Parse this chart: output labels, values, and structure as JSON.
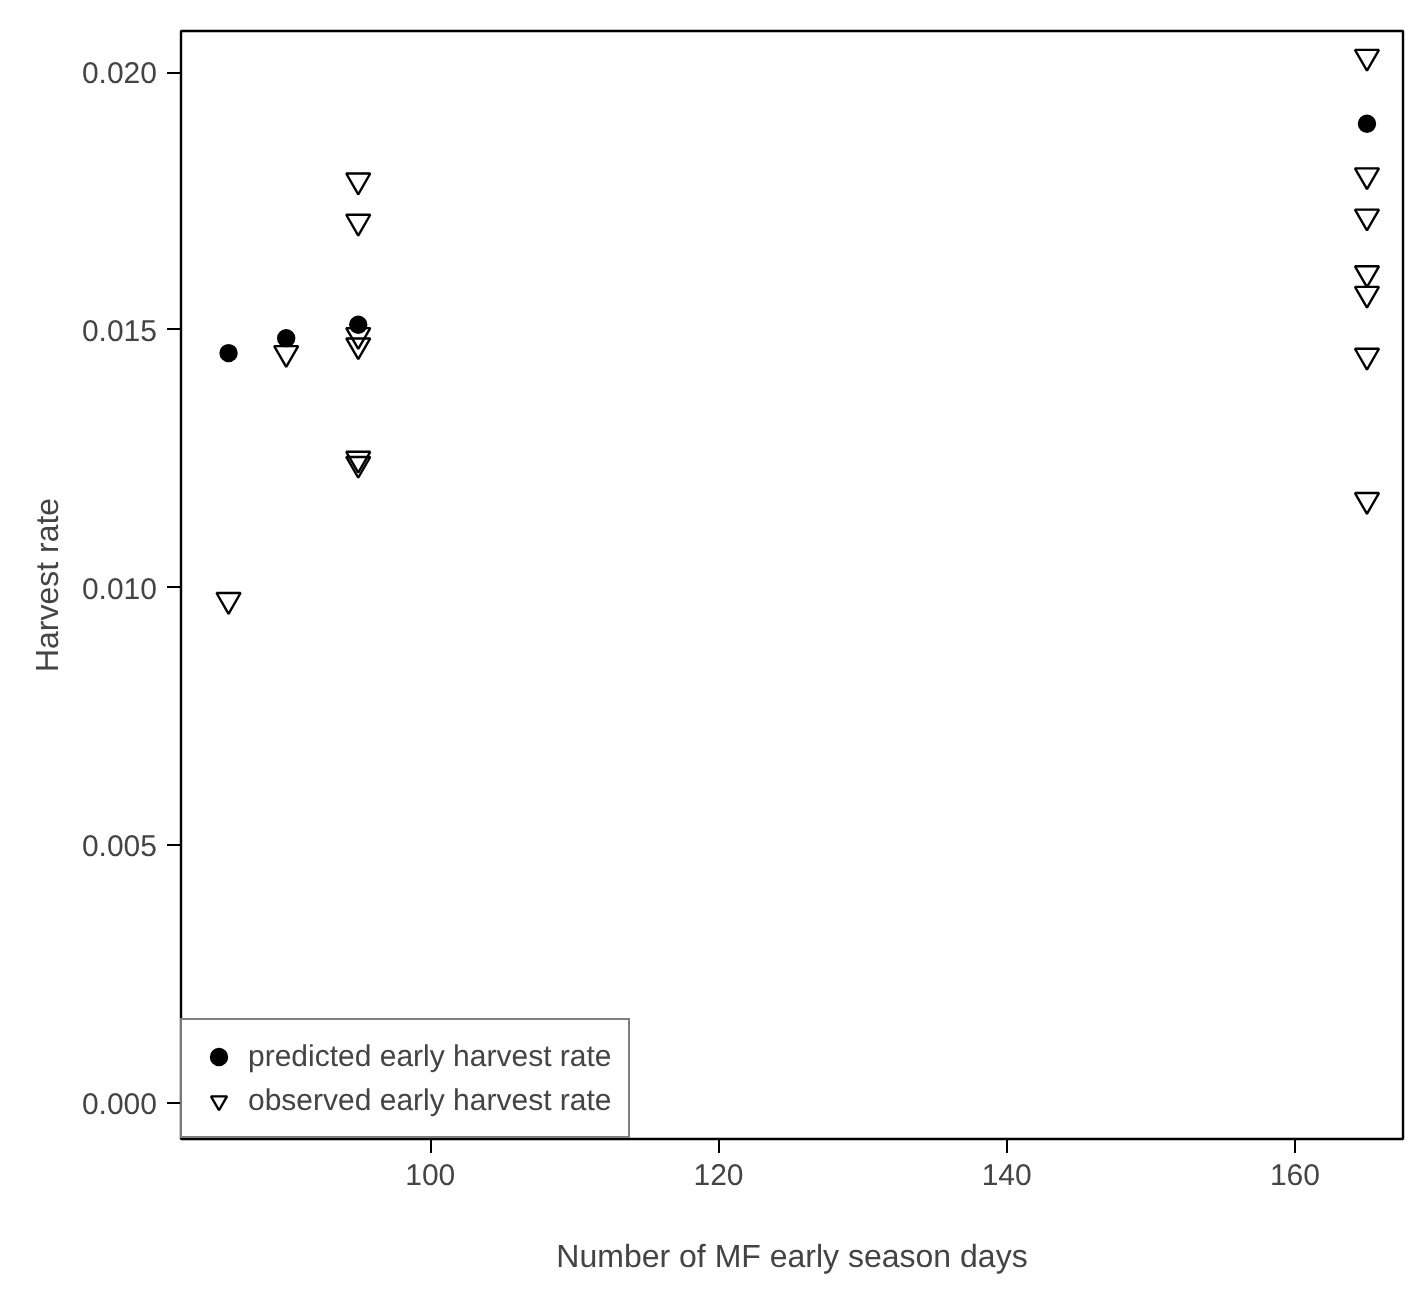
{
  "chart_data": {
    "type": "scatter",
    "xlabel": "Number of MF early season days",
    "ylabel": "Harvest rate",
    "series": [
      {
        "name": "predicted early harvest rate",
        "color": "#000000",
        "marker": "circle",
        "x": [
          86,
          90,
          95,
          165
        ],
        "values": [
          0.01455,
          0.01484,
          0.0151,
          0.019
        ]
      },
      {
        "name": "observed early harvest rate",
        "color": "#000000",
        "marker": "triangle",
        "x": [
          86,
          90,
          95,
          95,
          95,
          95,
          95,
          95,
          165,
          165,
          165,
          165,
          165,
          165,
          165
        ],
        "values": [
          0.00976,
          0.01455,
          0.0179,
          0.0171,
          0.0149,
          0.0147,
          0.0125,
          0.0124,
          0.0203,
          0.018,
          0.0172,
          0.0161,
          0.0157,
          0.0145,
          0.0117
        ]
      }
    ],
    "xlim": [
      82.7,
      167.5
    ],
    "ylim": [
      -0.0007,
      0.0208
    ],
    "xticks": [
      100,
      120,
      140,
      160
    ],
    "yticks": [
      {
        "value": 0,
        "label": "0.000"
      },
      0.005,
      {
        "value": 0.01,
        "label": "0.010"
      },
      0.015,
      {
        "value": 0.02,
        "label": "0.020"
      }
    ],
    "grid": false,
    "legend": "bottom left"
  }
}
